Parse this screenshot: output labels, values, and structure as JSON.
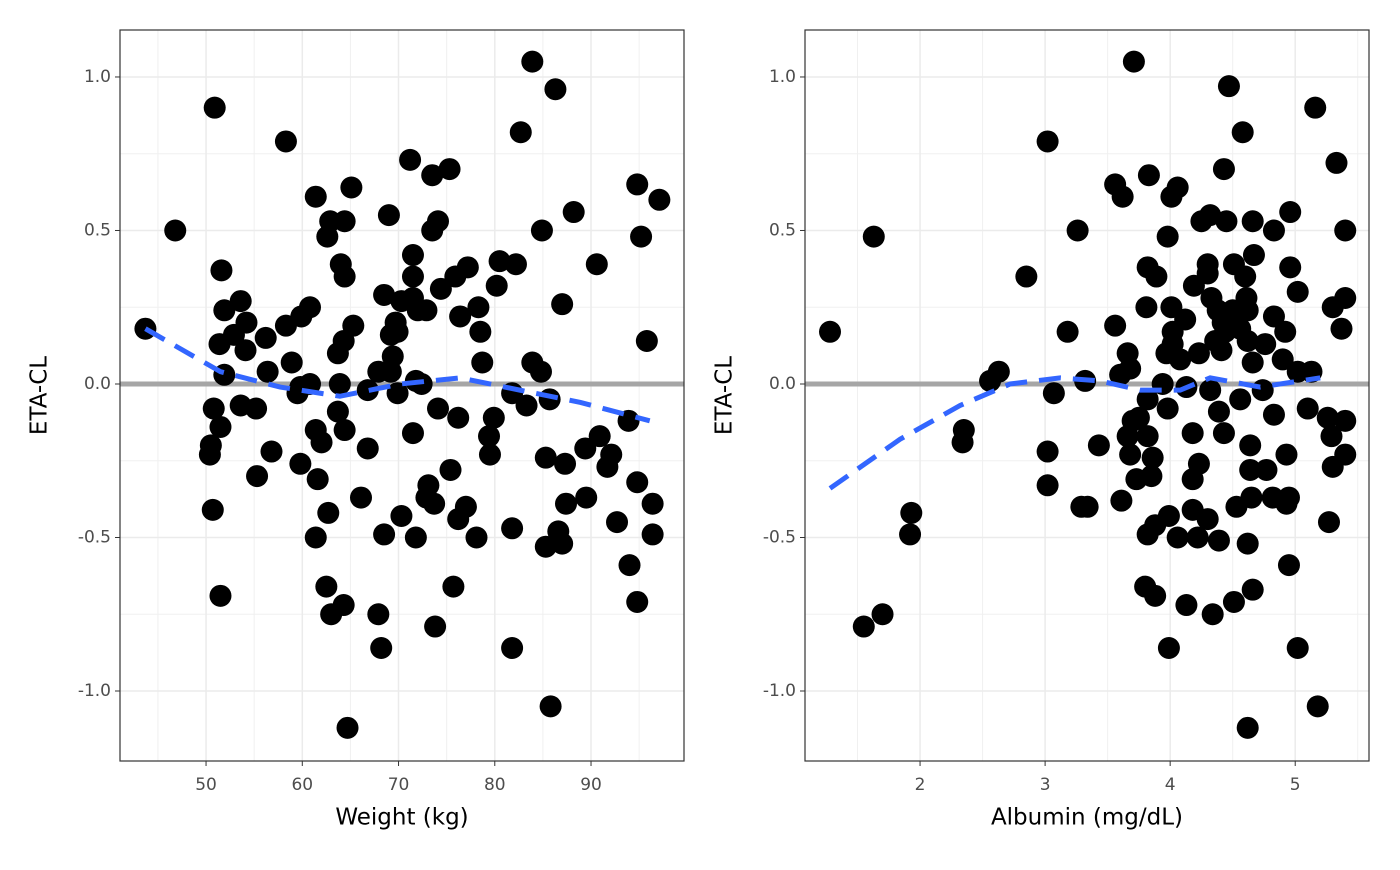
{
  "chart_data": [
    {
      "type": "scatter",
      "x_label": "Weight (kg)",
      "y_label": "ETA-CL",
      "xlim": [
        41.06,
        99.66
      ],
      "ylim": [
        -1.228,
        1.153
      ],
      "xticks": [
        50,
        60,
        70,
        80,
        90
      ],
      "yticks": [
        {
          "value": -1.0,
          "label": "-1.0"
        },
        -0.5,
        {
          "value": 0.0,
          "label": "0.0"
        },
        0.5,
        {
          "value": 1.0,
          "label": "1.0"
        }
      ],
      "grid": true,
      "point_color": "#000000",
      "hline": 0,
      "hline_color": "#a6a6a6",
      "x": [
        43.7,
        46.8,
        50.9,
        58.3,
        51.6,
        51.9,
        53.6,
        51.4,
        54.2,
        52.9,
        54.1,
        51.9,
        50.8,
        51.5,
        53.6,
        55.2,
        50.5,
        50.4,
        50.7,
        51.5,
        56.8,
        55.3,
        56.4,
        56.2,
        58.3,
        59.9,
        60.8,
        58.9,
        59.5,
        59.8,
        61.4,
        62.9,
        62.6,
        64.4,
        65.1,
        64.0,
        64.4,
        65.3,
        64.3,
        63.7,
        63.9,
        60.8,
        59.8,
        63.7,
        64.4,
        61.4,
        62.0,
        61.6,
        62.7,
        61.4,
        66.1,
        66.8,
        62.5,
        63.0,
        64.3,
        64.7,
        67.9,
        68.2,
        68.5,
        69.0,
        68.5,
        69.7,
        69.9,
        69.2,
        69.4,
        69.2,
        67.9,
        66.8,
        69.9,
        70.3,
        71.2,
        71.5,
        71.5,
        71.5,
        70.3,
        72.0,
        72.9,
        71.8,
        72.4,
        71.5,
        71.8,
        73.5,
        75.3,
        73.5,
        74.1,
        74.4,
        75.9,
        77.2,
        76.4,
        78.3,
        78.5,
        78.7,
        74.1,
        76.2,
        75.4,
        73.1,
        72.9,
        73.7,
        77.0,
        76.2,
        78.1,
        75.7,
        73.8,
        80.5,
        82.2,
        80.2,
        79.9,
        79.4,
        79.5,
        81.8,
        83.3,
        81.8,
        81.8,
        83.9,
        82.7,
        86.3,
        84.9,
        83.9,
        84.8,
        85.7,
        85.3,
        87.3,
        85.3,
        86.6,
        87.0,
        87.4,
        87.0,
        88.2,
        85.8,
        89.5,
        89.4,
        90.6,
        90.9,
        92.1,
        91.7,
        92.7,
        93.9,
        94.0,
        94.8,
        95.2,
        94.8,
        94.8,
        95.8,
        97.1,
        96.4,
        96.4
      ],
      "y": [
        0.18,
        0.5,
        0.9,
        0.79,
        0.37,
        0.24,
        0.27,
        0.13,
        0.2,
        0.16,
        0.11,
        0.03,
        -0.08,
        -0.14,
        -0.07,
        -0.08,
        -0.2,
        -0.23,
        -0.41,
        -0.69,
        -0.22,
        -0.3,
        0.04,
        0.15,
        0.19,
        0.22,
        0.25,
        0.07,
        -0.03,
        -0.26,
        0.61,
        0.53,
        0.48,
        0.53,
        0.64,
        0.39,
        0.35,
        0.19,
        0.14,
        0.1,
        0.0,
        0.0,
        -0.01,
        -0.09,
        -0.15,
        -0.15,
        -0.19,
        -0.31,
        -0.42,
        -0.5,
        -0.37,
        -0.21,
        -0.66,
        -0.75,
        -0.72,
        -1.12,
        -0.75,
        -0.86,
        -0.49,
        0.55,
        0.29,
        0.2,
        0.17,
        0.16,
        0.09,
        0.04,
        0.04,
        -0.02,
        -0.03,
        -0.43,
        0.73,
        0.42,
        0.35,
        0.28,
        0.27,
        0.24,
        0.24,
        0.01,
        0.0,
        -0.16,
        -0.5,
        0.68,
        0.7,
        0.5,
        0.53,
        0.31,
        0.35,
        0.38,
        0.22,
        0.25,
        0.17,
        0.07,
        -0.08,
        -0.11,
        -0.28,
        -0.33,
        -0.37,
        -0.39,
        -0.4,
        -0.44,
        -0.5,
        -0.66,
        -0.79,
        0.4,
        0.39,
        0.32,
        -0.11,
        -0.17,
        -0.23,
        -0.03,
        -0.07,
        -0.47,
        -0.86,
        1.05,
        0.82,
        0.96,
        0.5,
        0.07,
        0.04,
        -0.05,
        -0.24,
        -0.26,
        -0.53,
        -0.48,
        -0.52,
        -0.39,
        0.26,
        0.56,
        -1.05,
        -0.37,
        -0.21,
        0.39,
        -0.17,
        -0.23,
        -0.27,
        -0.45,
        -0.12,
        -0.59,
        0.65,
        0.48,
        -0.32,
        -0.71,
        0.14,
        0.6,
        -0.39,
        -0.49
      ],
      "smooth": {
        "color": "#3366ff",
        "x": [
          43.7,
          51.5,
          57.7,
          63.9,
          70.2,
          76.4,
          82.6,
          88.9,
          96.1
        ],
        "y": [
          0.18,
          0.04,
          -0.01,
          -0.04,
          0.0,
          0.02,
          -0.02,
          -0.06,
          -0.12
        ]
      }
    },
    {
      "type": "scatter",
      "x_label": "Albumin (mg/dL)",
      "y_label": "ETA-CL",
      "xlim": [
        1.08,
        5.59
      ],
      "ylim": [
        -1.228,
        1.153
      ],
      "xticks": [
        2,
        3,
        4,
        5
      ],
      "yticks": [
        {
          "value": -1.0,
          "label": "-1.0"
        },
        -0.5,
        {
          "value": 0.0,
          "label": "0.0"
        },
        0.5,
        {
          "value": 1.0,
          "label": "1.0"
        }
      ],
      "grid": true,
      "point_color": "#000000",
      "hline": 0,
      "hline_color": "#a6a6a6",
      "x": [
        1.28,
        1.63,
        1.55,
        1.7,
        1.93,
        1.92,
        2.35,
        2.34,
        2.85,
        2.63,
        2.56,
        3.02,
        3.26,
        3.18,
        3.07,
        3.02,
        3.02,
        3.29,
        3.34,
        3.32,
        3.71,
        3.56,
        3.62,
        3.56,
        3.43,
        3.61,
        3.66,
        3.68,
        3.6,
        3.7,
        3.66,
        3.68,
        3.73,
        3.82,
        3.83,
        3.81,
        3.82,
        3.75,
        3.82,
        3.86,
        3.85,
        3.82,
        3.88,
        3.8,
        3.88,
        3.89,
        3.97,
        3.98,
        4.01,
        4.06,
        4.01,
        4.02,
        4.02,
        4.08,
        3.94,
        3.98,
        3.99,
        4.06,
        3.99,
        4.13,
        4.12,
        4.19,
        4.23,
        4.13,
        4.18,
        4.23,
        4.18,
        4.18,
        4.22,
        4.25,
        4.32,
        4.3,
        4.3,
        4.33,
        4.38,
        4.42,
        4.44,
        4.36,
        4.41,
        4.32,
        4.39,
        4.43,
        4.3,
        4.39,
        4.34,
        4.47,
        4.43,
        4.58,
        4.45,
        4.51,
        4.6,
        4.61,
        4.5,
        4.62,
        4.67,
        4.56,
        4.62,
        4.66,
        4.56,
        4.64,
        4.64,
        4.65,
        4.53,
        4.62,
        4.66,
        4.51,
        4.62,
        4.66,
        4.83,
        4.76,
        4.74,
        4.83,
        4.77,
        4.82,
        4.93,
        4.95,
        4.93,
        4.9,
        4.96,
        4.96,
        4.83,
        4.92,
        5.02,
        5.02,
        4.95,
        5.02,
        5.16,
        5.33,
        5.4,
        5.4,
        5.3,
        5.37,
        5.13,
        5.1,
        5.26,
        5.4,
        5.29,
        5.4,
        5.3,
        5.27,
        5.18
      ],
      "y": [
        0.17,
        0.48,
        -0.79,
        -0.75,
        -0.42,
        -0.49,
        -0.15,
        -0.19,
        0.35,
        0.04,
        0.01,
        0.79,
        0.5,
        0.17,
        -0.03,
        -0.22,
        -0.33,
        -0.4,
        -0.4,
        0.01,
        1.05,
        0.65,
        0.61,
        0.19,
        -0.2,
        -0.38,
        0.1,
        0.05,
        0.03,
        -0.12,
        -0.17,
        -0.23,
        -0.31,
        0.38,
        0.68,
        0.25,
        -0.05,
        -0.11,
        -0.17,
        -0.24,
        -0.3,
        -0.49,
        -0.46,
        -0.66,
        -0.69,
        0.35,
        0.1,
        0.48,
        0.61,
        0.64,
        0.25,
        0.17,
        0.13,
        0.08,
        0.0,
        -0.08,
        -0.43,
        -0.5,
        -0.86,
        -0.72,
        0.21,
        0.32,
        0.1,
        -0.01,
        -0.16,
        -0.26,
        -0.31,
        -0.41,
        -0.5,
        0.53,
        0.55,
        0.39,
        0.36,
        0.28,
        0.24,
        0.2,
        0.17,
        0.14,
        0.11,
        -0.02,
        -0.09,
        -0.16,
        -0.44,
        -0.51,
        -0.75,
        0.97,
        0.7,
        0.82,
        0.53,
        0.39,
        0.35,
        0.28,
        0.24,
        0.24,
        0.42,
        0.18,
        0.14,
        0.07,
        -0.05,
        -0.2,
        -0.28,
        -0.37,
        -0.4,
        -0.52,
        -0.67,
        -0.71,
        -1.12,
        0.53,
        0.5,
        0.13,
        -0.02,
        -0.1,
        -0.28,
        -0.37,
        -0.39,
        -0.37,
        -0.23,
        0.08,
        0.56,
        0.38,
        0.22,
        0.17,
        0.3,
        0.04,
        -0.59,
        -0.86,
        0.9,
        0.72,
        0.5,
        0.28,
        0.25,
        0.18,
        0.04,
        -0.08,
        -0.11,
        -0.12,
        -0.17,
        -0.23,
        -0.27,
        -0.45,
        -1.05
      ],
      "smooth": {
        "color": "#3366ff",
        "x": [
          1.28,
          1.84,
          2.32,
          2.72,
          3.12,
          3.44,
          3.76,
          4.08,
          4.32,
          4.72,
          5.2
        ],
        "y": [
          -0.34,
          -0.18,
          -0.07,
          0.0,
          0.02,
          0.01,
          -0.02,
          -0.02,
          0.02,
          -0.01,
          0.02
        ]
      }
    }
  ]
}
